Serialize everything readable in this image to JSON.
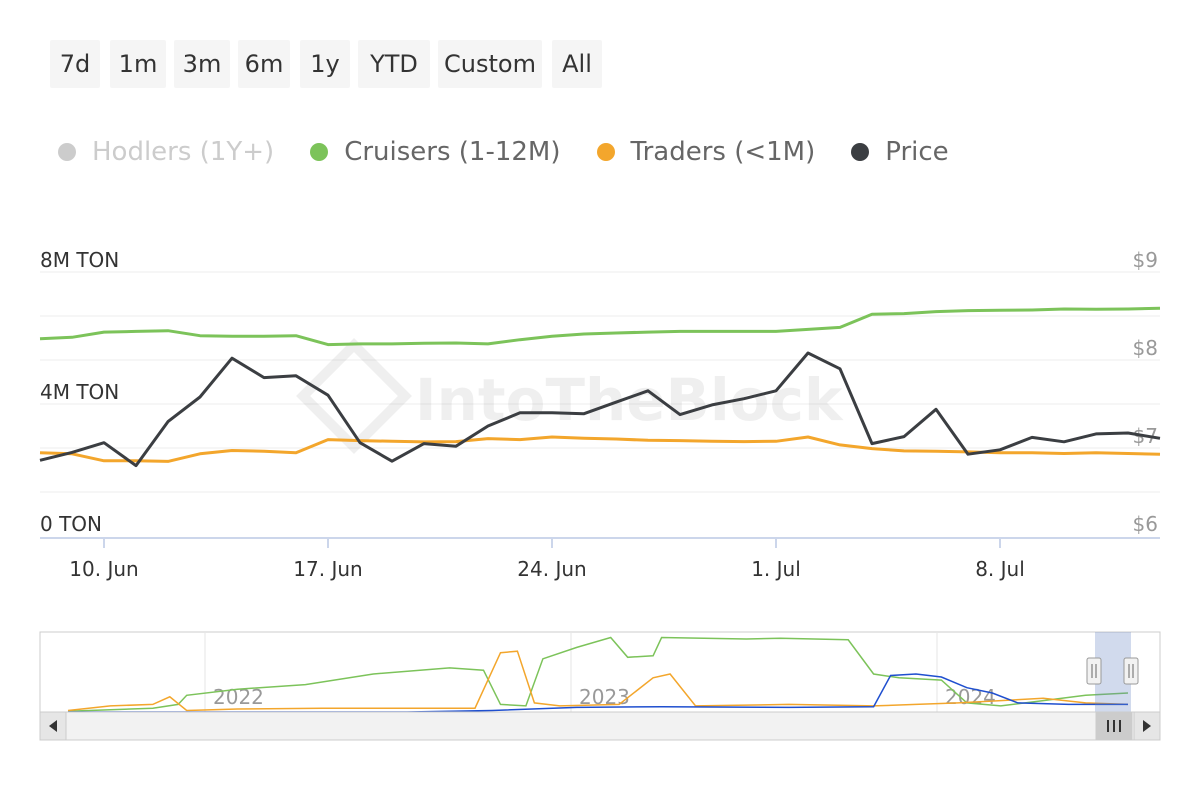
{
  "range_selector": {
    "buttons": [
      "7d",
      "1m",
      "3m",
      "6m",
      "1y",
      "YTD",
      "Custom",
      "All"
    ]
  },
  "legend": {
    "items": [
      {
        "label": "Hodlers (1Y+)",
        "color": "#cccccc",
        "enabled": false
      },
      {
        "label": "Cruisers (1-12M)",
        "color": "#7cc35a",
        "enabled": true
      },
      {
        "label": "Traders (<1M)",
        "color": "#f3a62c",
        "enabled": true
      },
      {
        "label": "Price",
        "color": "#3b3e42",
        "enabled": true
      }
    ]
  },
  "chart_data": {
    "type": "line",
    "x_start": "2024-06-08",
    "x_end": "2024-07-13",
    "x_tick_labels": [
      "10. Jun",
      "17. Jun",
      "24. Jun",
      "1. Jul",
      "8. Jul"
    ],
    "y_left": {
      "tick_labels": [
        "0 TON",
        "4M TON",
        "8M TON"
      ],
      "range": [
        0,
        8000000
      ]
    },
    "y_right": {
      "tick_labels": [
        "$6",
        "$7",
        "$8",
        "$9"
      ],
      "range": [
        6,
        9
      ]
    },
    "series": [
      {
        "name": "Cruisers (1-12M)",
        "axis": "left",
        "color": "#7cc35a",
        "values": [
          5.98,
          6.02,
          6.18,
          6.2,
          6.22,
          6.07,
          6.05,
          6.05,
          6.07,
          5.8,
          5.82,
          5.82,
          5.84,
          5.85,
          5.82,
          5.95,
          6.05,
          6.12,
          6.15,
          6.18,
          6.2,
          6.2,
          6.2,
          6.2,
          6.26,
          6.32,
          6.72,
          6.74,
          6.8,
          6.83,
          6.84,
          6.85,
          6.88,
          6.87,
          6.88,
          6.9
        ]
      },
      {
        "name": "Traders (<1M)",
        "axis": "left",
        "color": "#f3a62c",
        "values": [
          2.52,
          2.49,
          2.28,
          2.28,
          2.26,
          2.49,
          2.59,
          2.57,
          2.52,
          2.92,
          2.89,
          2.87,
          2.85,
          2.86,
          2.95,
          2.92,
          3.0,
          2.96,
          2.94,
          2.9,
          2.89,
          2.87,
          2.86,
          2.87,
          3.0,
          2.76,
          2.65,
          2.58,
          2.57,
          2.55,
          2.52,
          2.52,
          2.5,
          2.52,
          2.5,
          2.48
        ]
      },
      {
        "name": "Price",
        "axis": "right",
        "color": "#3b3e42",
        "values": [
          6.86,
          6.95,
          7.06,
          6.8,
          7.3,
          7.58,
          8.02,
          7.8,
          7.82,
          7.6,
          7.06,
          6.85,
          7.05,
          7.02,
          7.25,
          7.4,
          7.4,
          7.39,
          7.52,
          7.65,
          7.38,
          7.49,
          7.56,
          7.65,
          8.08,
          7.9,
          7.05,
          7.13,
          7.44,
          6.93,
          6.98,
          7.12,
          7.07,
          7.16,
          7.17,
          7.11
        ]
      }
    ],
    "navigator": {
      "year_labels": [
        "2022",
        "2023",
        "2024"
      ],
      "series": [
        {
          "name": "Cruisers (1-12M)",
          "color": "#7cc35a",
          "points": [
            [
              0,
              0.01
            ],
            [
              0.05,
              0.03
            ],
            [
              0.1,
              0.05
            ],
            [
              0.13,
              0.1
            ],
            [
              0.14,
              0.22
            ],
            [
              0.2,
              0.3
            ],
            [
              0.28,
              0.36
            ],
            [
              0.36,
              0.5
            ],
            [
              0.45,
              0.58
            ],
            [
              0.49,
              0.55
            ],
            [
              0.51,
              0.1
            ],
            [
              0.54,
              0.08
            ],
            [
              0.56,
              0.7
            ],
            [
              0.6,
              0.85
            ],
            [
              0.64,
              0.98
            ],
            [
              0.66,
              0.72
            ],
            [
              0.69,
              0.74
            ],
            [
              0.7,
              0.98
            ],
            [
              0.8,
              0.96
            ],
            [
              0.84,
              0.97
            ],
            [
              0.92,
              0.95
            ],
            [
              0.95,
              0.5
            ],
            [
              0.98,
              0.45
            ],
            [
              1.03,
              0.42
            ],
            [
              1.06,
              0.12
            ],
            [
              1.1,
              0.08
            ],
            [
              1.15,
              0.15
            ],
            [
              1.2,
              0.22
            ],
            [
              1.25,
              0.25
            ]
          ]
        },
        {
          "name": "Traders (<1M)",
          "color": "#f3a62c",
          "points": [
            [
              0,
              0.02
            ],
            [
              0.05,
              0.08
            ],
            [
              0.1,
              0.1
            ],
            [
              0.12,
              0.2
            ],
            [
              0.14,
              0.02
            ],
            [
              0.2,
              0.04
            ],
            [
              0.3,
              0.05
            ],
            [
              0.4,
              0.05
            ],
            [
              0.48,
              0.05
            ],
            [
              0.51,
              0.78
            ],
            [
              0.53,
              0.8
            ],
            [
              0.55,
              0.12
            ],
            [
              0.58,
              0.08
            ],
            [
              0.65,
              0.1
            ],
            [
              0.69,
              0.45
            ],
            [
              0.71,
              0.5
            ],
            [
              0.74,
              0.08
            ],
            [
              0.85,
              0.1
            ],
            [
              0.95,
              0.08
            ],
            [
              1.0,
              0.1
            ],
            [
              1.05,
              0.12
            ],
            [
              1.1,
              0.15
            ],
            [
              1.15,
              0.18
            ],
            [
              1.2,
              0.12
            ],
            [
              1.25,
              0.1
            ]
          ]
        },
        {
          "name": "Hodlers (1Y+)",
          "color": "#1f4fcf",
          "points": [
            [
              0,
              0.0
            ],
            [
              0.4,
              0.0
            ],
            [
              0.5,
              0.02
            ],
            [
              0.6,
              0.06
            ],
            [
              0.7,
              0.07
            ],
            [
              0.85,
              0.06
            ],
            [
              0.95,
              0.07
            ],
            [
              0.97,
              0.48
            ],
            [
              1.0,
              0.5
            ],
            [
              1.03,
              0.46
            ],
            [
              1.06,
              0.32
            ],
            [
              1.09,
              0.25
            ],
            [
              1.12,
              0.12
            ],
            [
              1.18,
              0.1
            ],
            [
              1.25,
              0.1
            ]
          ]
        }
      ]
    }
  }
}
